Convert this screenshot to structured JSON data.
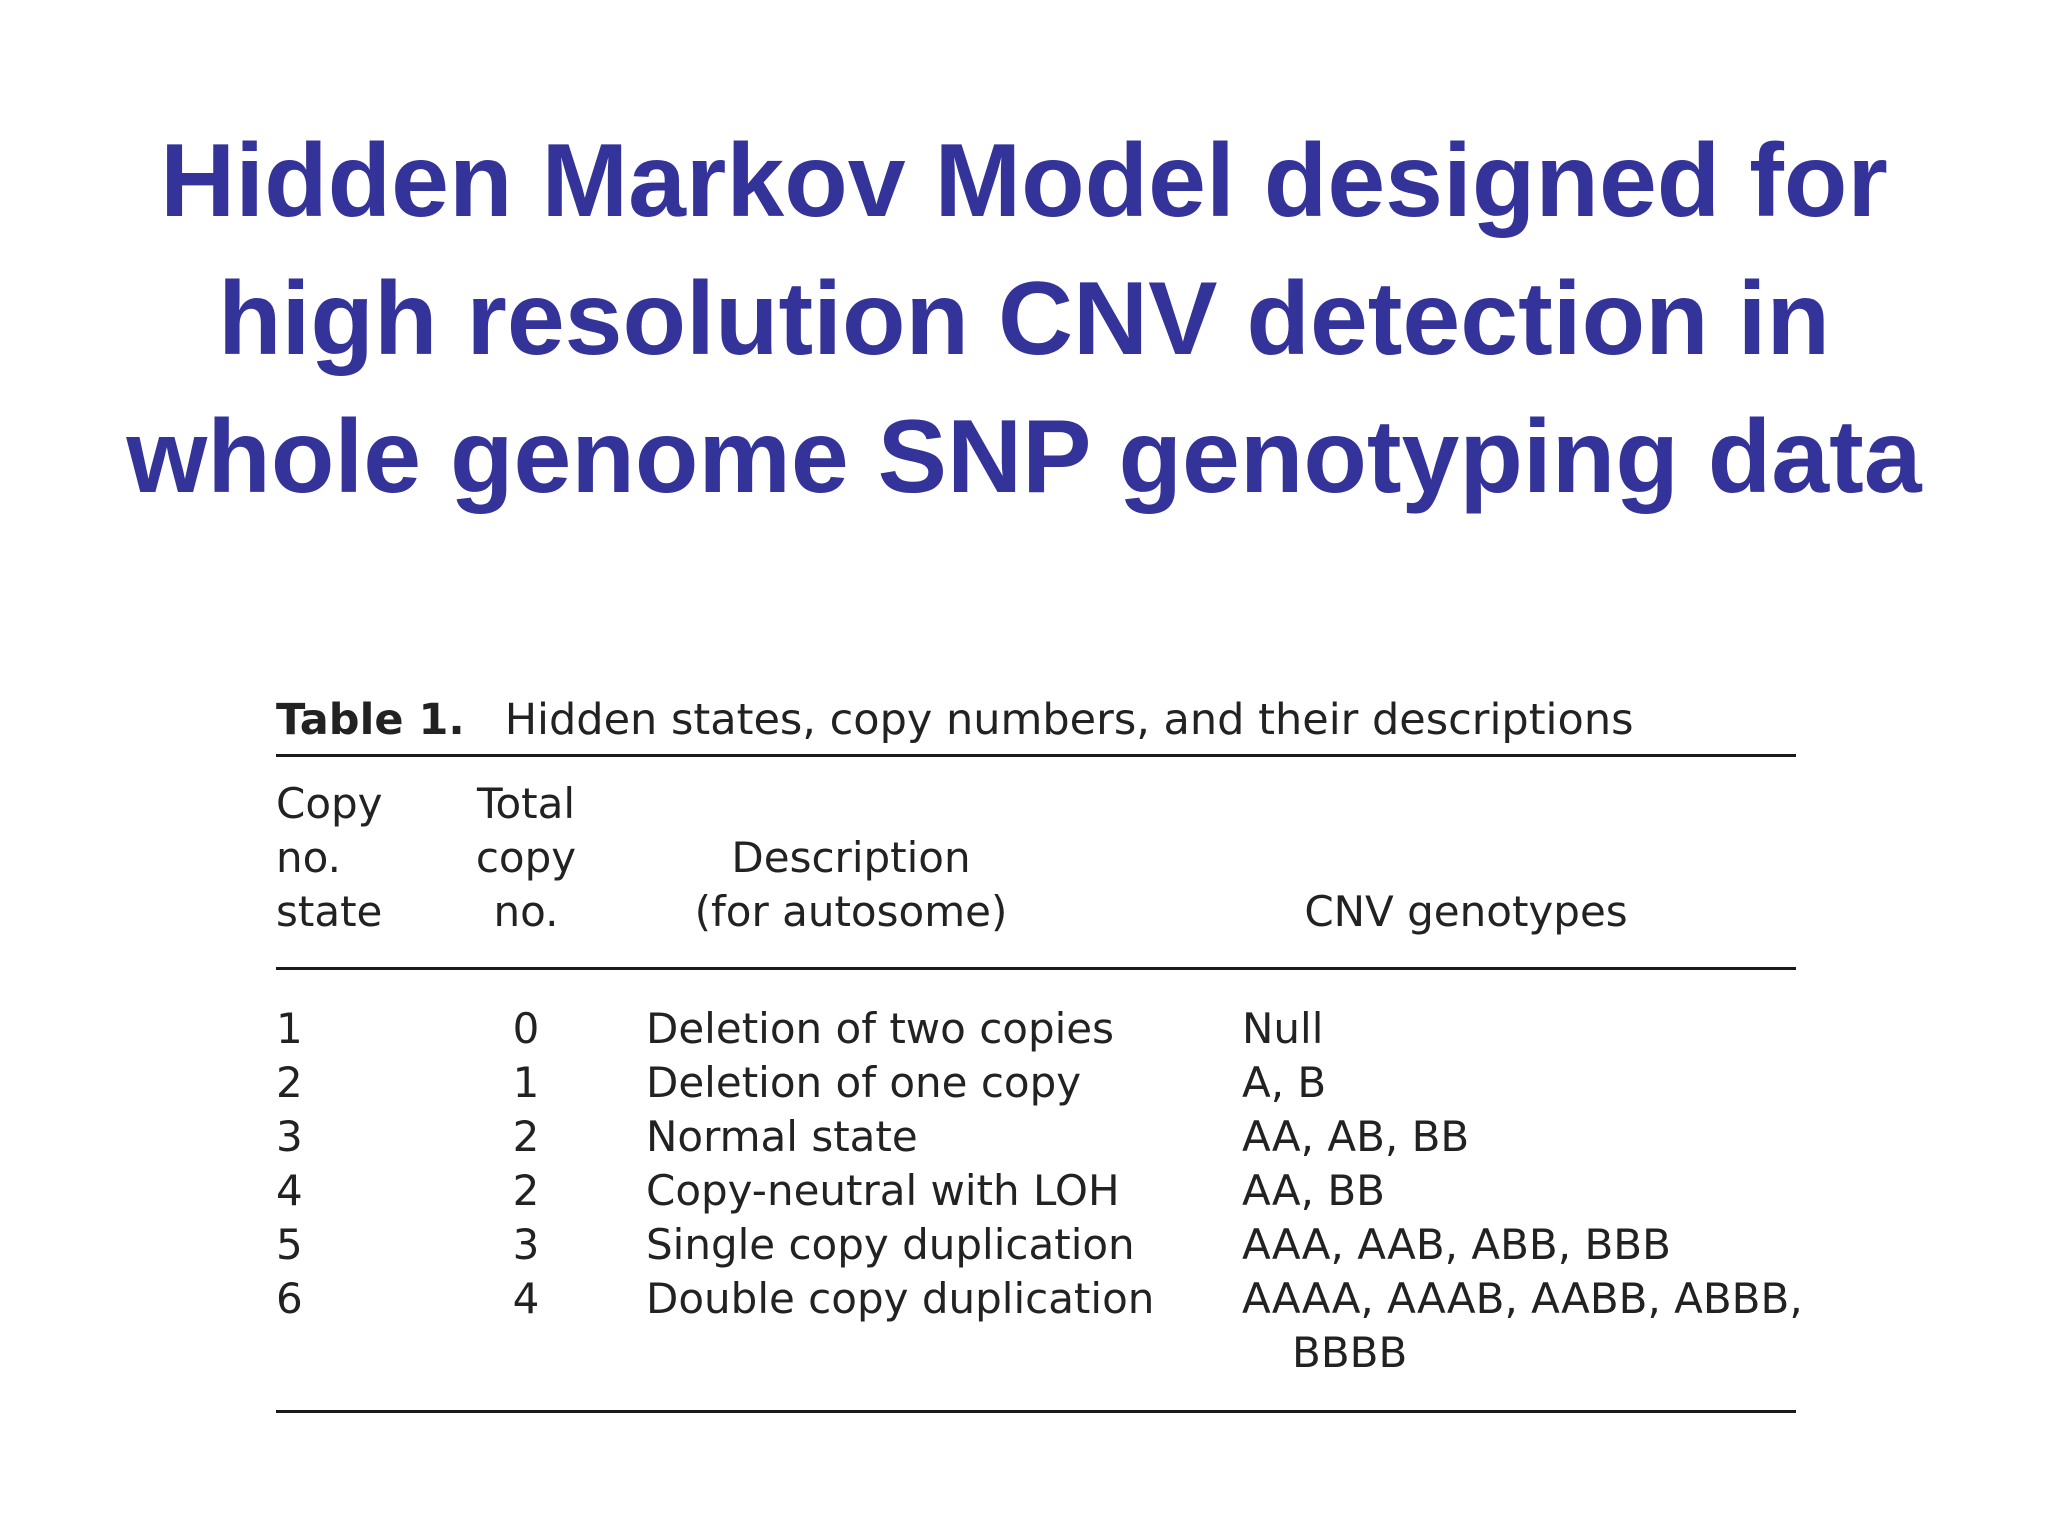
{
  "slide": {
    "title_lines": [
      "Hidden Markov Model designed for",
      "high resolution CNV detection in",
      "whole genome SNP genotyping data"
    ]
  },
  "table": {
    "caption_label": "Table 1.",
    "caption_text": "Hidden states, copy numbers, and their descriptions",
    "headers": {
      "copy_state": [
        "Copy",
        "no.",
        "state"
      ],
      "total_copy": [
        "Total",
        "copy",
        "no."
      ],
      "description": [
        "Description",
        "(for autosome)"
      ],
      "cnv_genotypes": "CNV genotypes"
    },
    "rows": [
      {
        "state": "1",
        "total": "0",
        "description": "Deletion of two copies",
        "genotypes": "Null",
        "genotypes_cont": ""
      },
      {
        "state": "2",
        "total": "1",
        "description": "Deletion of one copy",
        "genotypes": "A, B",
        "genotypes_cont": ""
      },
      {
        "state": "3",
        "total": "2",
        "description": "Normal state",
        "genotypes": "AA, AB, BB",
        "genotypes_cont": ""
      },
      {
        "state": "4",
        "total": "2",
        "description": "Copy-neutral with LOH",
        "genotypes": "AA, BB",
        "genotypes_cont": ""
      },
      {
        "state": "5",
        "total": "3",
        "description": "Single copy duplication",
        "genotypes": "AAA, AAB, ABB, BBB",
        "genotypes_cont": ""
      },
      {
        "state": "6",
        "total": "4",
        "description": "Double copy duplication",
        "genotypes": "AAAA, AAAB, AABB, ABBB,",
        "genotypes_cont": "BBBB"
      }
    ]
  }
}
